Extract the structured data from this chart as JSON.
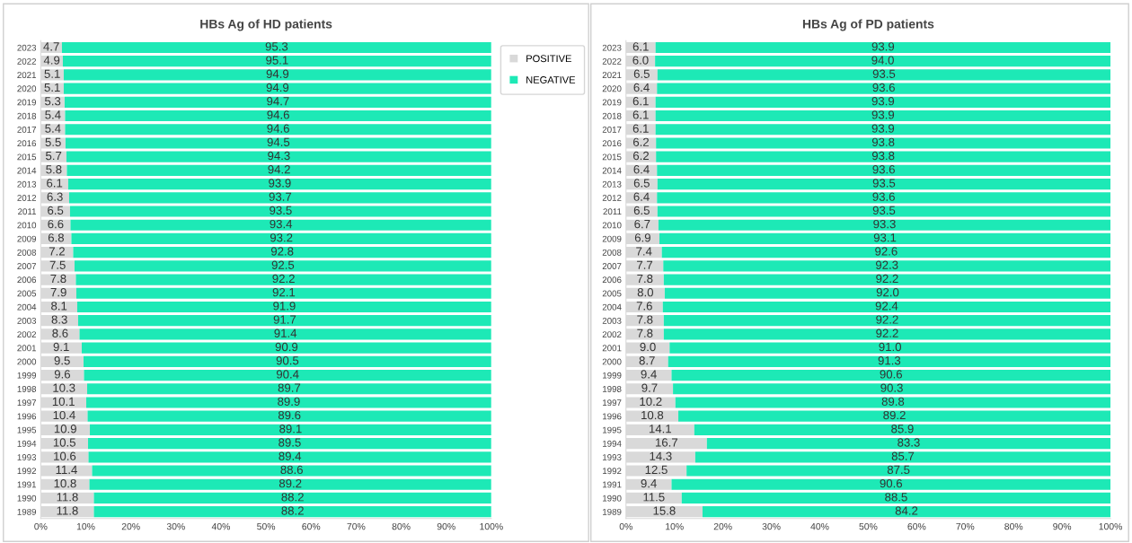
{
  "chart_data": [
    {
      "type": "bar",
      "title": "HBs Ag of HD patients",
      "orientation": "horizontal",
      "stacked": true,
      "data_labels": true,
      "legend": "top right",
      "grid": false,
      "categories": [
        "2023",
        "2022",
        "2021",
        "2020",
        "2019",
        "2018",
        "2017",
        "2016",
        "2015",
        "2014",
        "2013",
        "2012",
        "2011",
        "2010",
        "2009",
        "2008",
        "2007",
        "2006",
        "2005",
        "2004",
        "2003",
        "2002",
        "2001",
        "2000",
        "1999",
        "1998",
        "1997",
        "1996",
        "1995",
        "1994",
        "1993",
        "1992",
        "1991",
        "1990",
        "1989"
      ],
      "xlim": [
        0,
        100
      ],
      "xticks": [
        {
          "value": 0,
          "label": "0%"
        },
        {
          "value": 10,
          "label": "10%"
        },
        {
          "value": 20,
          "label": "20%"
        },
        {
          "value": 30,
          "label": "30%"
        },
        {
          "value": 40,
          "label": "40%"
        },
        {
          "value": 50,
          "label": "50%"
        },
        {
          "value": 60,
          "label": "60%"
        },
        {
          "value": 70,
          "label": "70%"
        },
        {
          "value": 80,
          "label": "80%"
        },
        {
          "value": 90,
          "label": "90%"
        },
        {
          "value": 100,
          "label": "100%"
        }
      ],
      "series": [
        {
          "name": "POSITIVE",
          "color": "#d9d9d9",
          "values": [
            4.7,
            4.9,
            5.1,
            5.1,
            5.3,
            5.4,
            5.4,
            5.5,
            5.7,
            5.8,
            6.1,
            6.3,
            6.5,
            6.6,
            6.8,
            7.2,
            7.5,
            7.8,
            7.9,
            8.1,
            8.3,
            8.6,
            9.1,
            9.5,
            9.6,
            10.3,
            10.1,
            10.4,
            10.9,
            10.5,
            10.6,
            11.4,
            10.8,
            11.8,
            11.8
          ]
        },
        {
          "name": "NEGATIVE",
          "color": "#1de9b6",
          "values": [
            95.3,
            95.1,
            94.9,
            94.9,
            94.7,
            94.6,
            94.6,
            94.5,
            94.3,
            94.2,
            93.9,
            93.7,
            93.5,
            93.4,
            93.2,
            92.8,
            92.5,
            92.2,
            92.1,
            91.9,
            91.7,
            91.4,
            90.9,
            90.5,
            90.4,
            89.7,
            89.9,
            89.6,
            89.1,
            89.5,
            89.4,
            88.6,
            89.2,
            88.2,
            88.2
          ]
        }
      ]
    },
    {
      "type": "bar",
      "title": "HBs Ag of PD patients",
      "orientation": "horizontal",
      "stacked": true,
      "grid": false,
      "categories": [
        "2023",
        "2022",
        "2021",
        "2020",
        "2019",
        "2018",
        "2017",
        "2016",
        "2015",
        "2014",
        "2013",
        "2012",
        "2011",
        "2010",
        "2009",
        "2008",
        "2007",
        "2006",
        "2005",
        "2004",
        "2003",
        "2002",
        "2001",
        "2000",
        "1999",
        "1998",
        "1997",
        "1996",
        "1995",
        "1994",
        "1993",
        "1992",
        "1991",
        "1990",
        "1989"
      ],
      "xlim": [
        0,
        100
      ],
      "xticks": [
        {
          "value": 0,
          "label": "0%"
        },
        {
          "value": 10,
          "label": "10%"
        },
        {
          "value": 20,
          "label": "20%"
        },
        {
          "value": 30,
          "label": "30%"
        },
        {
          "value": 40,
          "label": "40%"
        },
        {
          "value": 50,
          "label": "50%"
        },
        {
          "value": 60,
          "label": "60%"
        },
        {
          "value": 70,
          "label": "70%"
        },
        {
          "value": 80,
          "label": "80%"
        },
        {
          "value": 90,
          "label": "90%"
        },
        {
          "value": 100,
          "label": "100%"
        }
      ],
      "series": [
        {
          "color": "#d9d9d9",
          "values": [
            6.1,
            6.0,
            6.5,
            6.4,
            6.1,
            6.1,
            6.1,
            6.2,
            6.2,
            6.4,
            6.5,
            6.4,
            6.5,
            6.7,
            6.9,
            7.4,
            7.7,
            7.8,
            8.0,
            7.6,
            7.8,
            7.8,
            9.0,
            8.7,
            9.4,
            9.7,
            10.2,
            10.8,
            14.1,
            16.7,
            14.3,
            12.5,
            9.4,
            11.5,
            15.8
          ],
          "value_labels": [
            "6.1",
            "6.0",
            "6.5",
            "6.4",
            "6.1",
            "6.1",
            "6.1",
            "6.2",
            "6.2",
            "6.4",
            "6.5",
            "6.4",
            "6.5",
            "6.7",
            "6.9",
            "7.4",
            "7.7",
            "7.8",
            "8.0",
            "7.6",
            "7.8",
            "7.8",
            "9.0",
            "8.7",
            "9.4",
            "9.7",
            "10.2",
            "10.8",
            "14.1",
            "16.7",
            "14.3",
            "12.5",
            "9.4",
            "11.5",
            "15.8"
          ]
        },
        {
          "color": "#1de9b6",
          "values": [
            93.9,
            94.0,
            93.5,
            93.6,
            93.9,
            93.9,
            93.9,
            93.8,
            93.8,
            93.6,
            93.5,
            93.6,
            93.5,
            93.3,
            93.1,
            92.6,
            92.3,
            92.2,
            92.0,
            92.4,
            92.2,
            92.2,
            91.0,
            91.3,
            90.6,
            90.3,
            89.8,
            89.2,
            85.9,
            83.3,
            85.7,
            87.5,
            90.6,
            88.5,
            84.2
          ],
          "value_labels": [
            "93.9",
            "94.0",
            "93.5",
            "93.6",
            "93.9",
            "93.9",
            "93.9",
            "93.8",
            "93.8",
            "93.6",
            "93.5",
            "93.6",
            "93.5",
            "93.3",
            "93.1",
            "92.6",
            "92.3",
            "92.2",
            "92.0",
            "92.4",
            "92.2",
            "92.2",
            "91.0",
            "91.3",
            "90.6",
            "90.3",
            "89.8",
            "89.2",
            "85.9",
            "83.3",
            "85.7",
            "87.5",
            "90.6",
            "88.5",
            "84.2"
          ]
        }
      ]
    }
  ]
}
